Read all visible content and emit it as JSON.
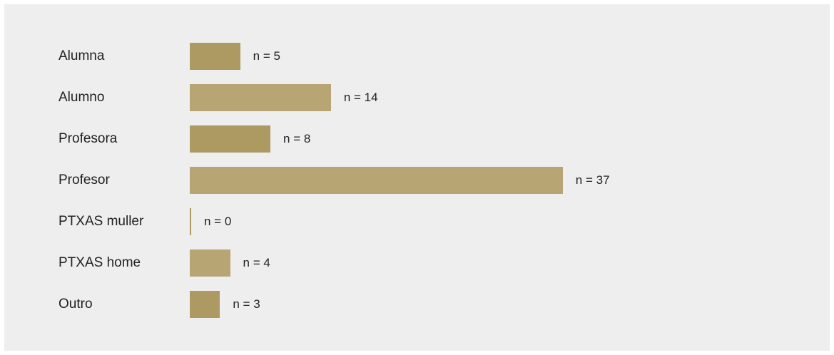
{
  "chart_data": {
    "type": "bar",
    "orientation": "horizontal",
    "title": "",
    "xlabel": "",
    "ylabel": "",
    "categories": [
      "Alumna",
      "Alumno",
      "Profesora",
      "Profesor",
      "PTXAS muller",
      "PTXAS home",
      "Outro"
    ],
    "values": [
      5,
      14,
      8,
      37,
      0,
      4,
      3
    ],
    "value_labels": [
      "n = 5",
      "n = 14",
      "n = 8",
      "n = 37",
      "n = 0",
      "n = 4",
      "n = 3"
    ],
    "colors": [
      "#ad9a63",
      "#b8a574",
      "#ad9a63",
      "#b8a574",
      "#ad9a63",
      "#b8a574",
      "#ad9a63"
    ],
    "background": "#eeeeee",
    "grid": false,
    "legend": "none"
  }
}
